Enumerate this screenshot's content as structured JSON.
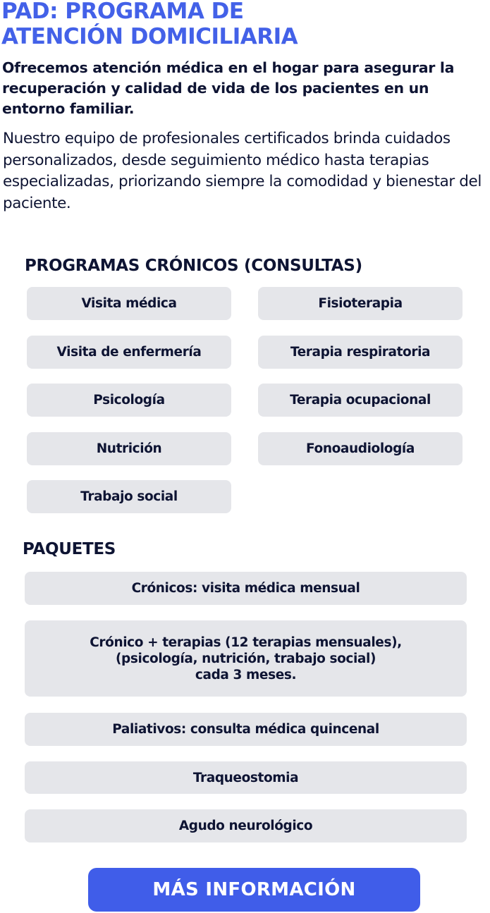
{
  "header": {
    "title_line1": "PAD: PROGRAMA DE",
    "title_line2": "ATENCIÓN DOMICILIARIA",
    "lead": "Ofrecemos atención médica en el hogar para asegurar la recuperación y calidad de vida de los pacientes en un entorno familiar.",
    "body": "Nuestro equipo de profesionales certificados brinda cuidados personalizados, desde seguimiento médico hasta terapias especializadas, priorizando siempre la comodidad y bienestar del paciente."
  },
  "chronic": {
    "heading": "PROGRAMAS CRÓNICOS (CONSULTAS)",
    "items": [
      "Visita médica",
      "Fisioterapia",
      "Visita de enfermería",
      "Terapia respiratoria",
      "Psicología",
      "Terapia ocupacional",
      "Nutrición",
      "Fonoaudiología",
      "Trabajo social"
    ]
  },
  "packages": {
    "heading": "PAQUETES",
    "items": [
      "Crónicos: visita médica mensual",
      "Crónico + terapias (12 terapias mensuales),\n(psicología, nutrición, trabajo social)\ncada 3 meses.",
      "Paliativos: consulta médica quincenal",
      "Traqueostomia",
      "Agudo neurológico"
    ]
  },
  "cta": {
    "label": "MÁS INFORMACIÓN"
  },
  "colors": {
    "accent": "#405de9",
    "text": "#0e1433",
    "box": "#e5e6ea"
  }
}
